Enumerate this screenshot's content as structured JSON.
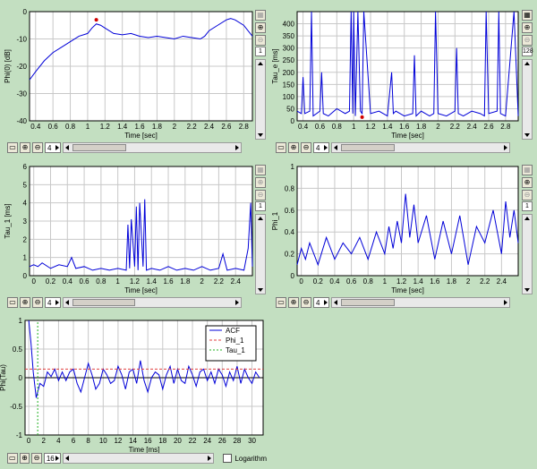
{
  "chart_data": [
    {
      "type": "line",
      "id": "p1",
      "ylabel": "Phi(0) [dB]",
      "xlabel": "Time [sec]",
      "xlim": [
        0.33,
        2.9
      ],
      "ylim": [
        -40,
        0
      ],
      "xticks": [
        "0.4",
        "0.6",
        "0.8",
        "1",
        "1.2",
        "1.4",
        "1.6",
        "1.8",
        "2",
        "2.2",
        "2.4",
        "2.6",
        "2.8"
      ],
      "xtickvals": [
        0.4,
        0.6,
        0.8,
        1,
        1.2,
        1.4,
        1.6,
        1.8,
        2,
        2.2,
        2.4,
        2.6,
        2.8
      ],
      "yticks": [
        "0",
        "-10",
        "-20",
        "-30",
        "-40"
      ],
      "ytickvals": [
        0,
        -10,
        -20,
        -30,
        -40
      ],
      "series": [
        {
          "x": [
            0.33,
            0.4,
            0.5,
            0.6,
            0.7,
            0.8,
            0.9,
            1.0,
            1.05,
            1.1,
            1.15,
            1.2,
            1.3,
            1.4,
            1.5,
            1.6,
            1.7,
            1.8,
            1.9,
            2.0,
            2.1,
            2.2,
            2.3,
            2.35,
            2.4,
            2.5,
            2.6,
            2.65,
            2.7,
            2.8,
            2.9
          ],
          "y": [
            -25,
            -22,
            -18,
            -15,
            -13,
            -11,
            -9,
            -8,
            -6,
            -4.5,
            -5,
            -6,
            -8,
            -8.5,
            -8,
            -9,
            -9.5,
            -9,
            -9.5,
            -10,
            -9,
            -9.5,
            -10,
            -9,
            -7,
            -5,
            -3,
            -2.5,
            -3,
            -5,
            -9
          ],
          "color": "#0000d8"
        }
      ],
      "marker": {
        "x": 1.1,
        "y": -3,
        "color": "#d00000"
      },
      "toolbar": {
        "spin": "4"
      },
      "side": {
        "spin": "1"
      }
    },
    {
      "type": "line",
      "id": "p2",
      "ylabel": "Tau_e [ms]",
      "xlabel": "Time [sec]",
      "xlim": [
        0.33,
        2.95
      ],
      "ylim": [
        0,
        450
      ],
      "xticks": [
        "0.4",
        "0.6",
        "0.8",
        "1",
        "1.2",
        "1.4",
        "1.6",
        "1.8",
        "2",
        "2.2",
        "2.4",
        "2.6",
        "2.8"
      ],
      "xtickvals": [
        0.4,
        0.6,
        0.8,
        1,
        1.2,
        1.4,
        1.6,
        1.8,
        2,
        2.2,
        2.4,
        2.6,
        2.8
      ],
      "yticks": [
        "0",
        "50",
        "100",
        "150",
        "200",
        "250",
        "300",
        "350",
        "400"
      ],
      "ytickvals": [
        0,
        50,
        100,
        150,
        200,
        250,
        300,
        350,
        400
      ],
      "series": [
        {
          "x": [
            0.33,
            0.38,
            0.4,
            0.42,
            0.48,
            0.5,
            0.52,
            0.6,
            0.62,
            0.64,
            0.7,
            0.8,
            0.9,
            0.95,
            0.97,
            0.99,
            1.0,
            1.02,
            1.05,
            1.08,
            1.1,
            1.12,
            1.2,
            1.3,
            1.4,
            1.45,
            1.47,
            1.5,
            1.6,
            1.7,
            1.72,
            1.74,
            1.8,
            1.9,
            1.95,
            1.97,
            2.0,
            2.1,
            2.2,
            2.22,
            2.24,
            2.3,
            2.4,
            2.5,
            2.55,
            2.57,
            2.6,
            2.7,
            2.72,
            2.74,
            2.8,
            2.9,
            2.95
          ],
          "y": [
            40,
            30,
            180,
            30,
            40,
            450,
            20,
            40,
            200,
            30,
            20,
            50,
            30,
            40,
            450,
            30,
            450,
            20,
            450,
            40,
            30,
            450,
            30,
            40,
            20,
            200,
            30,
            40,
            20,
            30,
            270,
            20,
            40,
            20,
            30,
            450,
            30,
            20,
            40,
            300,
            30,
            20,
            40,
            30,
            20,
            450,
            30,
            40,
            450,
            30,
            20,
            450,
            20
          ],
          "color": "#0000d8"
        }
      ],
      "marker": {
        "x": 1.1,
        "y": 15,
        "color": "#d00000"
      },
      "toolbar": {
        "spin": "4"
      },
      "side": {
        "spin": "128"
      }
    },
    {
      "type": "line",
      "id": "p3",
      "ylabel": "Tau_1 [ms]",
      "xlabel": "Time [sec]",
      "xlim": [
        -0.05,
        2.6
      ],
      "ylim": [
        0,
        6
      ],
      "xticks": [
        "0",
        "0.2",
        "0.4",
        "0.6",
        "0.8",
        "1",
        "1.2",
        "1.4",
        "1.6",
        "1.8",
        "2",
        "2.2",
        "2.4"
      ],
      "xtickvals": [
        0,
        0.2,
        0.4,
        0.6,
        0.8,
        1,
        1.2,
        1.4,
        1.6,
        1.8,
        2,
        2.2,
        2.4
      ],
      "yticks": [
        "0",
        "1",
        "2",
        "3",
        "4",
        "5",
        "6"
      ],
      "ytickvals": [
        0,
        1,
        2,
        3,
        4,
        5,
        6
      ],
      "series": [
        {
          "x": [
            -0.05,
            0,
            0.05,
            0.1,
            0.2,
            0.3,
            0.4,
            0.45,
            0.5,
            0.6,
            0.7,
            0.8,
            0.9,
            1.0,
            1.1,
            1.12,
            1.14,
            1.16,
            1.2,
            1.22,
            1.24,
            1.26,
            1.3,
            1.32,
            1.34,
            1.4,
            1.5,
            1.6,
            1.7,
            1.8,
            1.9,
            2.0,
            2.1,
            2.2,
            2.25,
            2.3,
            2.4,
            2.5,
            2.55,
            2.58,
            2.6
          ],
          "y": [
            0.5,
            0.6,
            0.5,
            0.7,
            0.4,
            0.6,
            0.5,
            1.0,
            0.4,
            0.5,
            0.3,
            0.4,
            0.3,
            0.4,
            0.3,
            2.8,
            0.4,
            3.1,
            0.5,
            3.8,
            0.3,
            4.0,
            0.5,
            4.2,
            0.3,
            0.4,
            0.3,
            0.5,
            0.3,
            0.4,
            0.3,
            0.5,
            0.3,
            0.4,
            1.2,
            0.3,
            0.4,
            0.3,
            1.5,
            4.0,
            0.5
          ],
          "color": "#0000d8"
        }
      ],
      "toolbar": {
        "spin": "4"
      },
      "side": {
        "spin": "1"
      }
    },
    {
      "type": "line",
      "id": "p4",
      "ylabel": "Phi_1",
      "xlabel": "Time [sec]",
      "xlim": [
        -0.05,
        2.6
      ],
      "ylim": [
        0,
        1
      ],
      "xticks": [
        "0",
        "0.2",
        "0.4",
        "0.6",
        "0.8",
        "1",
        "1.2",
        "1.4",
        "1.6",
        "1.8",
        "2",
        "2.2",
        "2.4"
      ],
      "xtickvals": [
        0,
        0.2,
        0.4,
        0.6,
        0.8,
        1,
        1.2,
        1.4,
        1.6,
        1.8,
        2,
        2.2,
        2.4
      ],
      "yticks": [
        "0",
        "0.2",
        "0.4",
        "0.6",
        "0.8",
        "1"
      ],
      "ytickvals": [
        0,
        0.2,
        0.4,
        0.6,
        0.8,
        1
      ],
      "series": [
        {
          "x": [
            -0.05,
            0,
            0.05,
            0.1,
            0.15,
            0.2,
            0.3,
            0.4,
            0.5,
            0.6,
            0.7,
            0.8,
            0.9,
            1.0,
            1.05,
            1.1,
            1.15,
            1.2,
            1.25,
            1.3,
            1.35,
            1.4,
            1.5,
            1.6,
            1.7,
            1.8,
            1.9,
            2.0,
            2.1,
            2.2,
            2.3,
            2.4,
            2.45,
            2.5,
            2.55,
            2.6
          ],
          "y": [
            0.1,
            0.25,
            0.15,
            0.3,
            0.2,
            0.1,
            0.35,
            0.15,
            0.3,
            0.2,
            0.35,
            0.15,
            0.4,
            0.2,
            0.45,
            0.25,
            0.5,
            0.3,
            0.75,
            0.35,
            0.65,
            0.3,
            0.55,
            0.15,
            0.5,
            0.2,
            0.55,
            0.1,
            0.45,
            0.3,
            0.6,
            0.2,
            0.68,
            0.35,
            0.6,
            0.3
          ],
          "color": "#0000d8"
        }
      ],
      "toolbar": {
        "spin": "4"
      },
      "side": {
        "spin": "1"
      }
    },
    {
      "type": "line",
      "id": "p5",
      "ylabel": "Phi(Tau)",
      "xlabel": "Time [ms]",
      "xlim": [
        -0.5,
        31.5
      ],
      "ylim": [
        -1,
        1
      ],
      "xticks": [
        "0",
        "2",
        "4",
        "6",
        "8",
        "10",
        "12",
        "14",
        "16",
        "18",
        "20",
        "22",
        "24",
        "26",
        "28",
        "30"
      ],
      "xtickvals": [
        0,
        2,
        4,
        6,
        8,
        10,
        12,
        14,
        16,
        18,
        20,
        22,
        24,
        26,
        28,
        30
      ],
      "yticks": [
        "-1",
        "-0.5",
        "0",
        "0.5",
        "1"
      ],
      "ytickvals": [
        -1,
        -0.5,
        0,
        0.5,
        1
      ],
      "series": [
        {
          "name": "ACF",
          "color": "#0000d8",
          "dash": "",
          "x": [
            0,
            0.3,
            0.6,
            1,
            1.5,
            2,
            2.5,
            3,
            3.5,
            4,
            4.5,
            5,
            5.5,
            6,
            6.5,
            7,
            7.5,
            8,
            8.5,
            9,
            9.5,
            10,
            10.5,
            11,
            11.5,
            12,
            12.5,
            13,
            13.5,
            14,
            14.5,
            15,
            15.5,
            16,
            16.5,
            17,
            17.5,
            18,
            18.5,
            19,
            19.5,
            20,
            20.5,
            21,
            21.5,
            22,
            22.5,
            23,
            23.5,
            24,
            24.5,
            25,
            25.5,
            26,
            26.5,
            27,
            27.5,
            28,
            28.5,
            29,
            29.5,
            30,
            30.5,
            31
          ],
          "y": [
            1,
            0.6,
            0.1,
            -0.35,
            -0.1,
            -0.15,
            0.1,
            0.02,
            0.15,
            -0.05,
            0.1,
            -0.05,
            0.1,
            0.15,
            -0.1,
            -0.25,
            0.0,
            0.25,
            0.05,
            -0.2,
            -0.1,
            0.15,
            0.05,
            -0.1,
            -0.05,
            0.2,
            0.05,
            -0.2,
            0.1,
            0.15,
            -0.1,
            0.3,
            -0.05,
            -0.25,
            0.0,
            0.1,
            0.05,
            -0.2,
            0.05,
            0.2,
            -0.1,
            0.15,
            -0.05,
            -0.1,
            0.2,
            0.05,
            -0.15,
            0.1,
            0.15,
            -0.05,
            0.1,
            -0.1,
            0.15,
            0.05,
            -0.15,
            0.1,
            -0.05,
            0.2,
            -0.1,
            0.15,
            0.0,
            -0.1,
            0.1,
            0.0
          ]
        },
        {
          "name": "Phi_1",
          "color": "#e04040",
          "dash": "3,2",
          "x": [
            -0.5,
            31.5
          ],
          "y": [
            0.15,
            0.15
          ]
        },
        {
          "name": "Tau_1",
          "color": "#20b020",
          "dash": "2,2",
          "x": [
            1.2,
            1.2
          ],
          "y": [
            -1,
            1
          ]
        }
      ],
      "legend": "top-right",
      "toolbar": {
        "spin": "16",
        "checkbox_label": "Logarithm"
      }
    }
  ]
}
